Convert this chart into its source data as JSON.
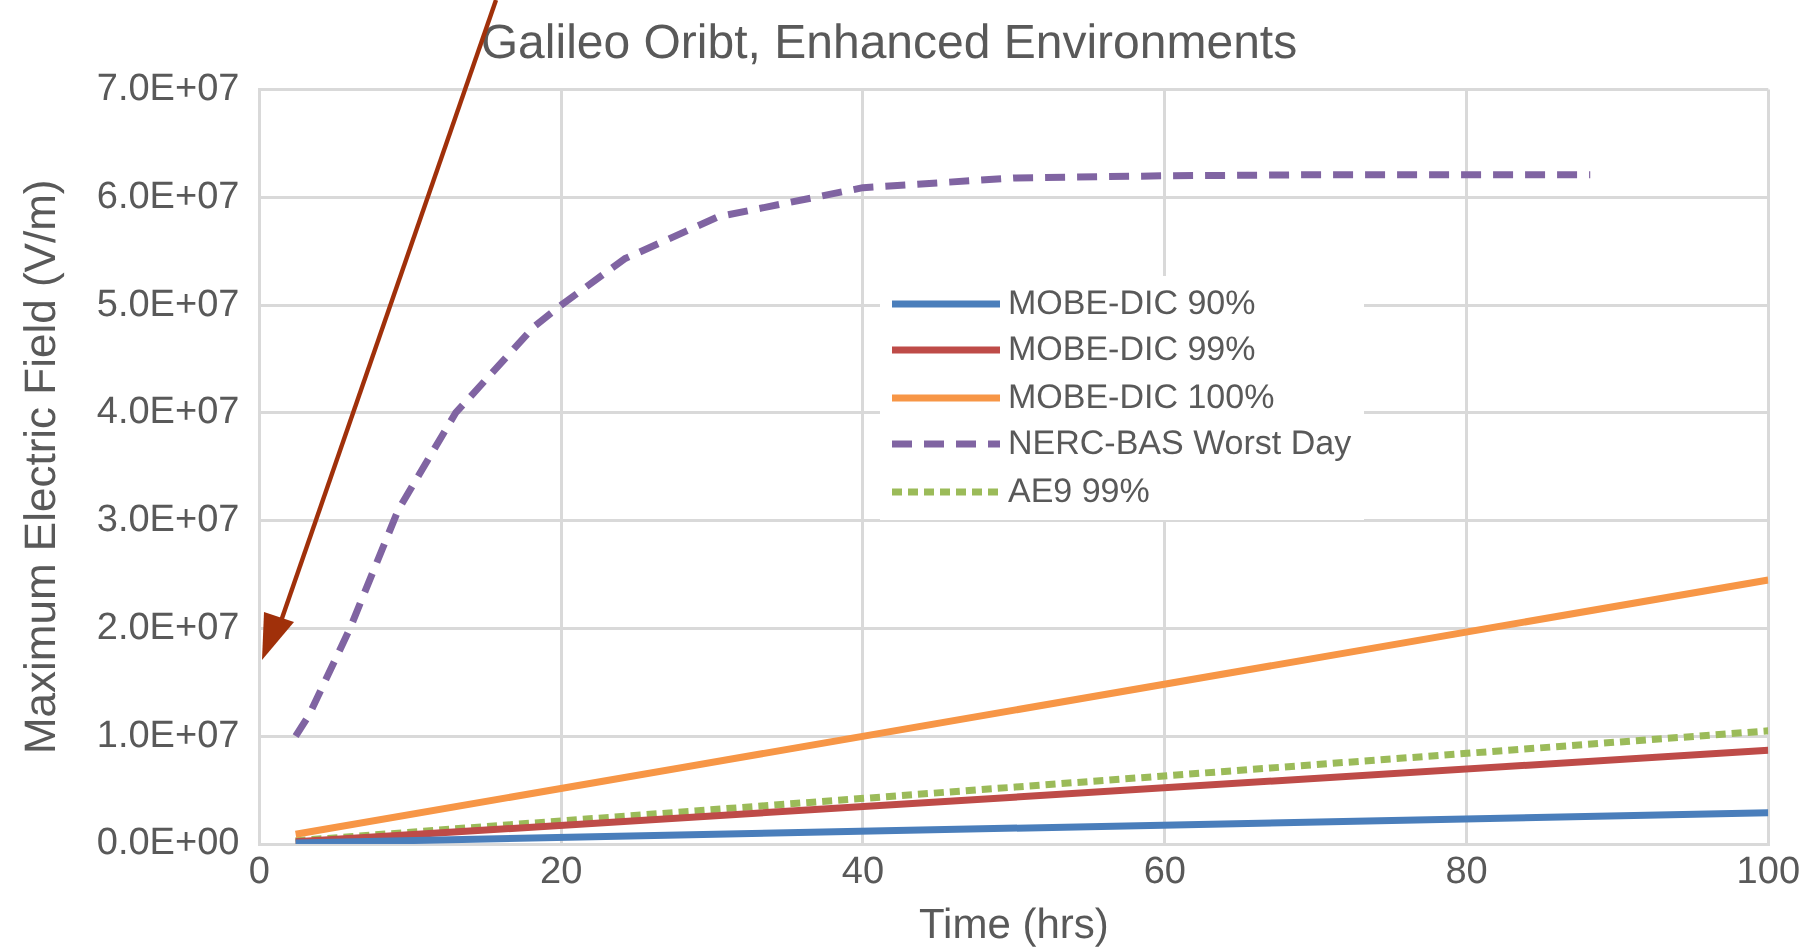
{
  "chart_data": {
    "type": "line",
    "title": "Galileo Oribt, Enhanced Environments",
    "xlabel": "Time (hrs)",
    "ylabel": "Maximum Electric Field (V/m)",
    "xlim": [
      0,
      100
    ],
    "xticks": [
      0,
      20,
      40,
      60,
      80,
      100
    ],
    "ylim": [
      0,
      70000000
    ],
    "yticks": [
      {
        "value": 0,
        "label": "0.0E+00"
      },
      {
        "value": 10000000,
        "label": "1.0E+07"
      },
      {
        "value": 20000000,
        "label": "2.0E+07"
      },
      {
        "value": 30000000,
        "label": "3.0E+07"
      },
      {
        "value": 40000000,
        "label": "4.0E+07"
      },
      {
        "value": 50000000,
        "label": "5.0E+07"
      },
      {
        "value": 60000000,
        "label": "6.0E+07"
      },
      {
        "value": 70000000,
        "label": "7.0E+07"
      }
    ],
    "grid": true,
    "legend": "right",
    "marker": "none",
    "series": [
      {
        "name": "MOBE-DIC 90%",
        "color": "#4a7ebb",
        "line_style": "solid",
        "x": [
          2.4,
          100
        ],
        "values": [
          100000,
          2900000
        ]
      },
      {
        "name": "MOBE-DIC 99%",
        "color": "#be4b48",
        "line_style": "solid",
        "x": [
          2.4,
          100
        ],
        "values": [
          200000,
          8700000
        ]
      },
      {
        "name": "MOBE-DIC 100%",
        "color": "#f79646",
        "line_style": "solid",
        "x": [
          2.4,
          100
        ],
        "values": [
          900000,
          24500000
        ]
      },
      {
        "name": "NERC-BAS Worst Day",
        "color": "#8064a2",
        "line_style": "dashed",
        "x": [
          2.4,
          3.3,
          6,
          9.2,
          13,
          18.2,
          20,
          24.2,
          30.4,
          40,
          50,
          60,
          70,
          80,
          88.2
        ],
        "values": [
          10000000,
          12000000,
          20000000,
          31000000,
          40000000,
          48000000,
          50000000,
          54300000,
          58200000,
          60900000,
          61800000,
          62000000,
          62100000,
          62100000,
          62100000
        ]
      },
      {
        "name": "AE9 99%",
        "color": "#9bbb59",
        "line_style": "dotted",
        "x": [
          2.4,
          100
        ],
        "values": [
          300000,
          10500000
        ]
      }
    ]
  }
}
